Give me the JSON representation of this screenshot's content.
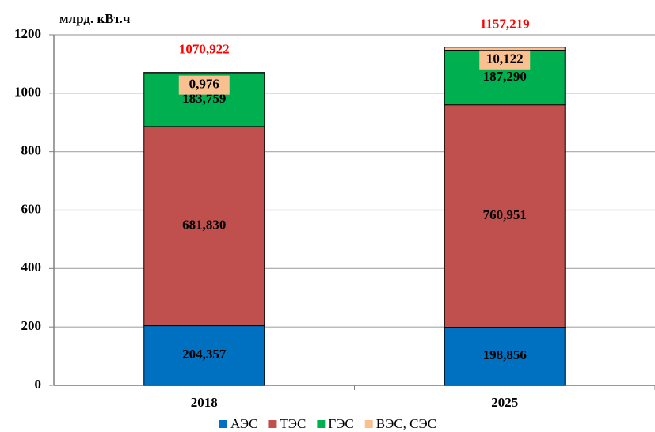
{
  "chart_data": {
    "type": "stacked_bar",
    "y_label": "млрд. кВт.ч",
    "categories": [
      "2018",
      "2025"
    ],
    "series": [
      {
        "name": "АЭС",
        "color": "#0070c0",
        "values": [
          204.357,
          198.856
        ],
        "value_labels": [
          "204,357",
          "198,856"
        ]
      },
      {
        "name": "ТЭС",
        "color": "#c0504d",
        "values": [
          681.83,
          760.951
        ],
        "value_labels": [
          "681,830",
          "760,951"
        ]
      },
      {
        "name": "ГЭС",
        "color": "#00b050",
        "values": [
          183.759,
          187.29
        ],
        "value_labels": [
          "183,759",
          "187,290"
        ]
      },
      {
        "name": "ВЭС, СЭС",
        "color": "#fac090",
        "values": [
          0.976,
          10.122
        ],
        "value_labels": [
          "0,976",
          "10,122"
        ]
      }
    ],
    "totals": [
      1070.922,
      1157.219
    ],
    "total_labels": [
      "1070,922",
      "1157,219"
    ],
    "ylim": [
      0,
      1200
    ],
    "yticks": [
      0,
      200,
      400,
      600,
      800,
      1000,
      1200
    ],
    "grid": true,
    "legend": "bottom"
  }
}
